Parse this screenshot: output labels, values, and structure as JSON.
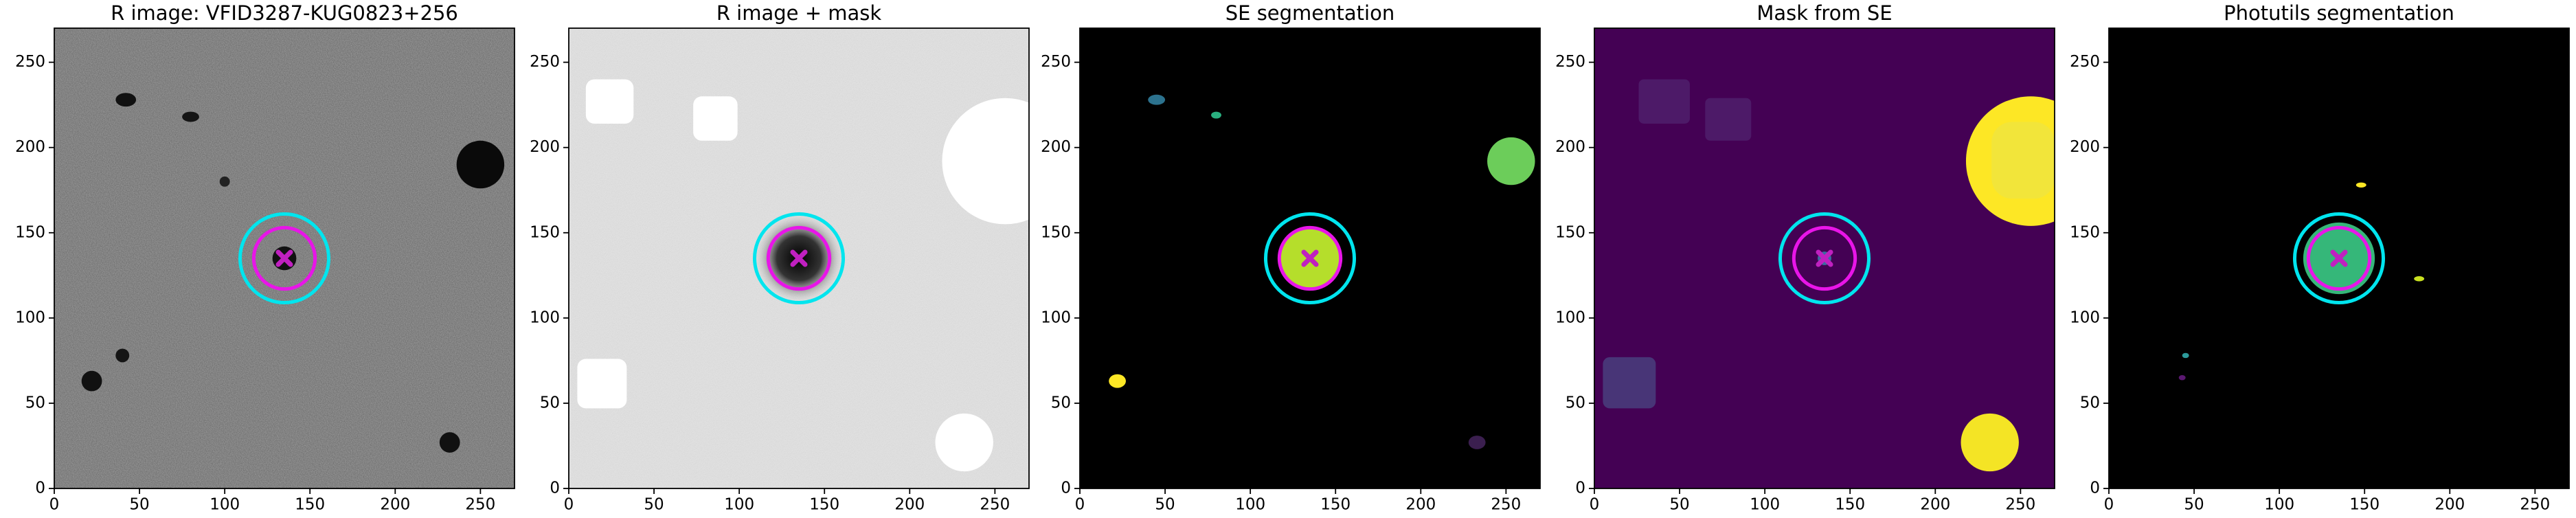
{
  "chart_data": [
    {
      "type": "image",
      "title": "R image: VFID3287-KUG0823+256",
      "xlim": [
        0,
        270
      ],
      "ylim": [
        0,
        270
      ],
      "xticks": [
        0,
        50,
        100,
        150,
        200,
        250
      ],
      "yticks": [
        0,
        50,
        100,
        150,
        200,
        250
      ],
      "circles": [
        {
          "x": 135,
          "y": 135,
          "r": 26,
          "color": "#00e5ee"
        },
        {
          "x": 135,
          "y": 135,
          "r": 18,
          "color": "#e815e8"
        }
      ],
      "marker": {
        "x": 135,
        "y": 135,
        "color": "#c020c0"
      }
    },
    {
      "type": "image",
      "title": "R image + mask",
      "xlim": [
        0,
        270
      ],
      "ylim": [
        0,
        270
      ],
      "xticks": [
        0,
        50,
        100,
        150,
        200,
        250
      ],
      "yticks": [
        0,
        50,
        100,
        150,
        200,
        250
      ],
      "circles": [
        {
          "x": 135,
          "y": 135,
          "r": 26,
          "color": "#00e5ee"
        },
        {
          "x": 135,
          "y": 135,
          "r": 18,
          "color": "#e815e8"
        }
      ],
      "marker": {
        "x": 135,
        "y": 135,
        "color": "#c020c0"
      }
    },
    {
      "type": "image",
      "title": "SE segmentation",
      "xlim": [
        0,
        270
      ],
      "ylim": [
        0,
        270
      ],
      "xticks": [
        0,
        50,
        100,
        150,
        200,
        250
      ],
      "yticks": [
        0,
        50,
        100,
        150,
        200,
        250
      ],
      "circles": [
        {
          "x": 135,
          "y": 135,
          "r": 26,
          "color": "#00e5ee"
        },
        {
          "x": 135,
          "y": 135,
          "r": 18,
          "color": "#e815e8"
        }
      ],
      "marker": {
        "x": 135,
        "y": 135,
        "color": "#c020c0"
      }
    },
    {
      "type": "image",
      "title": "Mask from SE",
      "xlim": [
        0,
        270
      ],
      "ylim": [
        0,
        270
      ],
      "xticks": [
        0,
        50,
        100,
        150,
        200,
        250
      ],
      "yticks": [
        0,
        50,
        100,
        150,
        200,
        250
      ],
      "circles": [
        {
          "x": 135,
          "y": 135,
          "r": 26,
          "color": "#00e5ee"
        },
        {
          "x": 135,
          "y": 135,
          "r": 18,
          "color": "#e815e8"
        }
      ],
      "marker": {
        "x": 135,
        "y": 135,
        "color": "#c020c0"
      }
    },
    {
      "type": "image",
      "title": "Photutils segmentation",
      "xlim": [
        0,
        270
      ],
      "ylim": [
        0,
        270
      ],
      "xticks": [
        0,
        50,
        100,
        150,
        200,
        250
      ],
      "yticks": [
        0,
        50,
        100,
        150,
        200,
        250
      ],
      "circles": [
        {
          "x": 135,
          "y": 135,
          "r": 26,
          "color": "#00e5ee"
        },
        {
          "x": 135,
          "y": 135,
          "r": 18,
          "color": "#e815e8"
        }
      ],
      "marker": {
        "x": 135,
        "y": 135,
        "color": "#c020c0"
      }
    }
  ]
}
